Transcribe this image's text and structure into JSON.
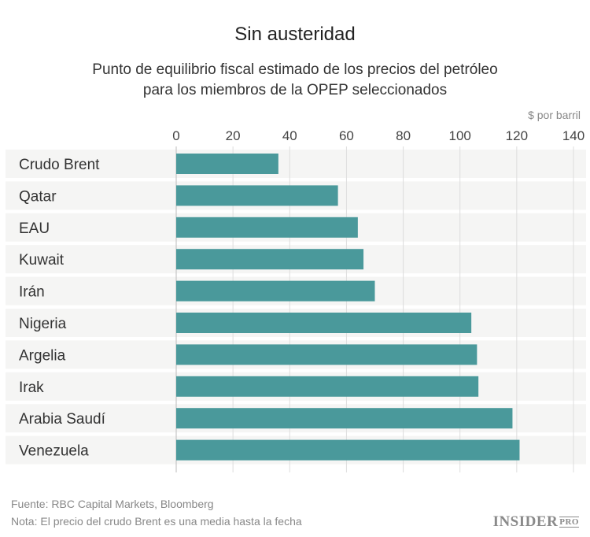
{
  "chart_data": {
    "type": "bar",
    "orientation": "horizontal",
    "title": "Sin austeridad",
    "subtitle": [
      "Punto de equilibrio fiscal estimado de los precios del petróleo",
      "para los miembros de la OPEP seleccionados"
    ],
    "unit_label": "$ por barril",
    "categories": [
      "Crudo Brent",
      "Qatar",
      "EAU",
      "Kuwait",
      "Irán",
      "Nigeria",
      "Argelia",
      "Irak",
      "Arabia Saudí",
      "Venezuela"
    ],
    "values": [
      36,
      57,
      64,
      66,
      70,
      104,
      106,
      106.5,
      118.5,
      121
    ],
    "xlim": [
      0,
      140
    ],
    "ticks": [
      0,
      20,
      40,
      60,
      80,
      100,
      120,
      140
    ],
    "grid": true,
    "bar_color": "#4a999b"
  },
  "footer": {
    "source": "Fuente: RBC Capital Markets, Bloomberg",
    "note": "Nota: El precio del crudo Brent es una media hasta la fecha"
  },
  "logo": {
    "main": "INSIDER",
    "suffix": "PRO"
  }
}
